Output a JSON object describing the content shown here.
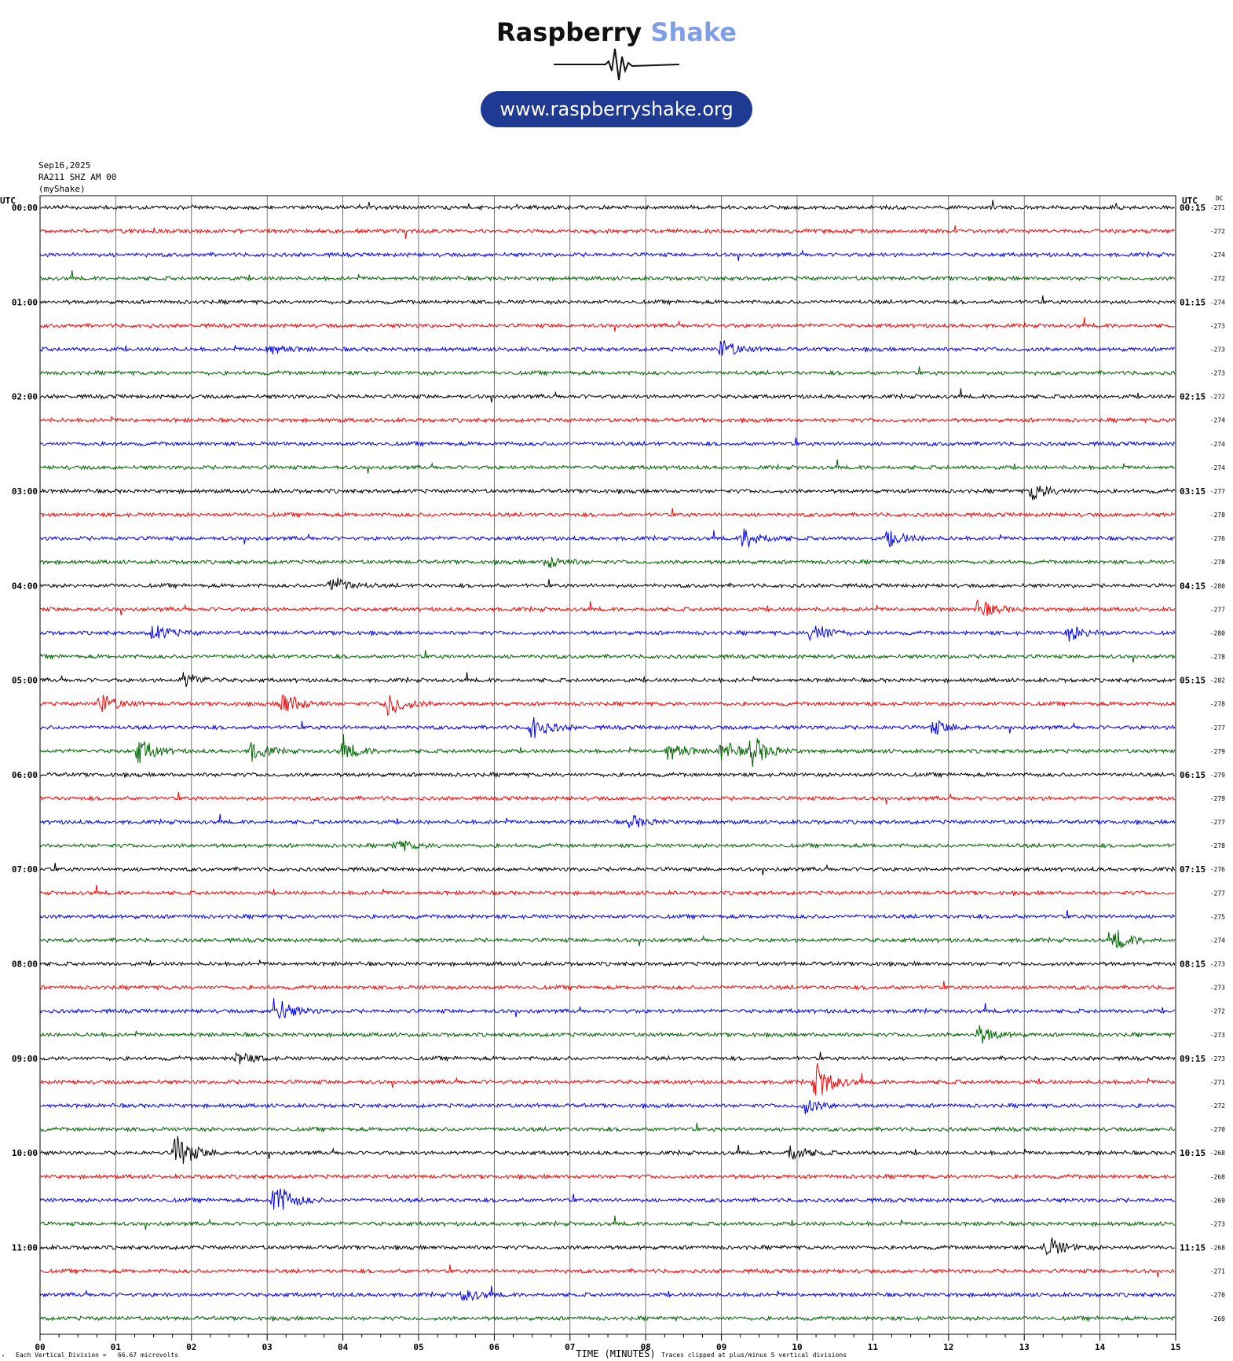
{
  "branding": {
    "name_part1": "Raspberry",
    "name_part2": "Shake",
    "url": "www.raspberryshake.org",
    "pill_color": "#1f3a93"
  },
  "info": {
    "date": "Sep16,2025",
    "station": "RA211 SHZ AM 00",
    "network": "(myShake)"
  },
  "chart_data": {
    "type": "line",
    "subtype": "helicorder",
    "x_axis": {
      "label": "TIME (MINUTES)",
      "range": [
        0,
        15
      ],
      "ticks": [
        "00",
        "01",
        "02",
        "03",
        "04",
        "05",
        "06",
        "07",
        "08",
        "09",
        "10",
        "11",
        "12",
        "13",
        "14",
        "15"
      ],
      "grid": true
    },
    "left_axis_title": "UTC",
    "right_axis_title": "UTC",
    "dc_title": "DC",
    "line_colors": [
      "#000000",
      "#ff0000",
      "#0000ff",
      "#006400"
    ],
    "hour_labels_left": [
      "00:00",
      "01:00",
      "02:00",
      "03:00",
      "04:00",
      "05:00",
      "06:00",
      "07:00",
      "08:00",
      "09:00",
      "10:00",
      "11:00"
    ],
    "hour_labels_right": [
      "00:15",
      "01:15",
      "02:15",
      "03:15",
      "04:15",
      "05:15",
      "06:15",
      "07:15",
      "08:15",
      "09:15",
      "10:15",
      "11:15"
    ],
    "dc_values": [
      "-271",
      "-272",
      "-274",
      "-272",
      "-274",
      "-273",
      "-273",
      "-273",
      "-272",
      "-274",
      "-274",
      "-274",
      "-277",
      "-278",
      "-276",
      "-278",
      "-280",
      "-277",
      "-280",
      "-278",
      "-282",
      "-278",
      "-277",
      "-279",
      "-279",
      "-279",
      "-277",
      "-278",
      "-276",
      "-277",
      "-275",
      "-274",
      "-273",
      "-273",
      "-272",
      "-273",
      "-273",
      "-271",
      "-272",
      "-270",
      "-268",
      "-268",
      "-269",
      "-273",
      "-268",
      "-271",
      "-270",
      "-269"
    ],
    "events": [
      {
        "trace": 6,
        "minute": 3.0,
        "amplitude": 0.35
      },
      {
        "trace": 6,
        "minute": 9.0,
        "amplitude": 0.5
      },
      {
        "trace": 12,
        "minute": 13.1,
        "amplitude": 0.5
      },
      {
        "trace": 14,
        "minute": 9.3,
        "amplitude": 0.6
      },
      {
        "trace": 14,
        "minute": 11.2,
        "amplitude": 0.45
      },
      {
        "trace": 15,
        "minute": 6.7,
        "amplitude": 0.35
      },
      {
        "trace": 16,
        "minute": 3.85,
        "amplitude": 0.5
      },
      {
        "trace": 17,
        "minute": 12.4,
        "amplitude": 0.5
      },
      {
        "trace": 18,
        "minute": 1.5,
        "amplitude": 0.45
      },
      {
        "trace": 18,
        "minute": 10.2,
        "amplitude": 0.6
      },
      {
        "trace": 18,
        "minute": 13.6,
        "amplitude": 0.4
      },
      {
        "trace": 20,
        "minute": 1.9,
        "amplitude": 0.4
      },
      {
        "trace": 21,
        "minute": 0.8,
        "amplitude": 0.55
      },
      {
        "trace": 21,
        "minute": 3.2,
        "amplitude": 0.7
      },
      {
        "trace": 21,
        "minute": 4.6,
        "amplitude": 0.65
      },
      {
        "trace": 22,
        "minute": 6.5,
        "amplitude": 0.6
      },
      {
        "trace": 22,
        "minute": 11.8,
        "amplitude": 0.4
      },
      {
        "trace": 23,
        "minute": 1.3,
        "amplitude": 0.7
      },
      {
        "trace": 23,
        "minute": 2.8,
        "amplitude": 0.5
      },
      {
        "trace": 23,
        "minute": 4.0,
        "amplitude": 0.5
      },
      {
        "trace": 23,
        "minute": 8.3,
        "amplitude": 0.55
      },
      {
        "trace": 23,
        "minute": 9.0,
        "amplitude": 0.55
      },
      {
        "trace": 23,
        "minute": 9.4,
        "amplitude": 0.8
      },
      {
        "trace": 26,
        "minute": 7.8,
        "amplitude": 0.35
      },
      {
        "trace": 27,
        "minute": 4.7,
        "amplitude": 0.35
      },
      {
        "trace": 31,
        "minute": 14.2,
        "amplitude": 0.55
      },
      {
        "trace": 34,
        "minute": 3.1,
        "amplitude": 0.8
      },
      {
        "trace": 35,
        "minute": 12.4,
        "amplitude": 0.5
      },
      {
        "trace": 36,
        "minute": 2.6,
        "amplitude": 0.35
      },
      {
        "trace": 37,
        "minute": 10.25,
        "amplitude": 1.0
      },
      {
        "trace": 38,
        "minute": 10.1,
        "amplitude": 0.4
      },
      {
        "trace": 40,
        "minute": 1.8,
        "amplitude": 1.0
      },
      {
        "trace": 40,
        "minute": 9.9,
        "amplitude": 0.45
      },
      {
        "trace": 42,
        "minute": 3.1,
        "amplitude": 1.0
      },
      {
        "trace": 44,
        "minute": 13.3,
        "amplitude": 0.6
      },
      {
        "trace": 46,
        "minute": 5.6,
        "amplitude": 0.35
      }
    ]
  },
  "footer": {
    "scale_note": "Each Vertical Division =   66.67 microvolts",
    "clip_note": "Traces clipped at plus/minus 5 vertical divisions",
    "corner_mark": "ᴿ"
  }
}
